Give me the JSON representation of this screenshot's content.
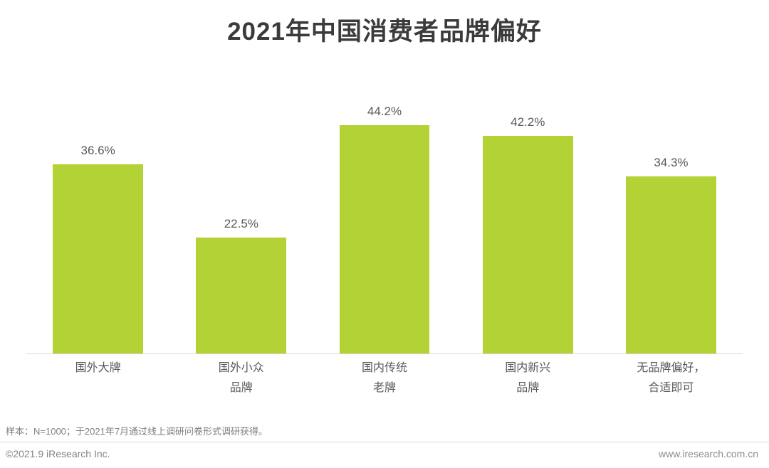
{
  "chart_data": {
    "type": "bar",
    "title": "2021年中国消费者品牌偏好",
    "categories": [
      "国外大牌",
      "国外小众品牌",
      "国内传统老牌",
      "国内新兴品牌",
      "无品牌偏好，合适即可"
    ],
    "category_lines": [
      [
        "国外大牌"
      ],
      [
        "国外小众",
        "品牌"
      ],
      [
        "国内传统",
        "老牌"
      ],
      [
        "国内新兴",
        "品牌"
      ],
      [
        "无品牌偏好，",
        "合适即可"
      ]
    ],
    "values": [
      36.6,
      22.5,
      44.2,
      42.2,
      34.3
    ],
    "value_labels": [
      "36.6%",
      "22.5%",
      "44.2%",
      "42.2%",
      "34.3%"
    ],
    "xlabel": "",
    "ylabel": "",
    "ylim": [
      0,
      50
    ],
    "grid": false,
    "legend": "none",
    "bar_color": "#b2d235",
    "axis_line_color": "#d9d9d9",
    "label_color": "#595959",
    "title_color": "#3b3b3b"
  },
  "footer": {
    "note": "样本：N=1000；于2021年7月通过线上调研问卷形式调研获得。",
    "copyright": "©2021.9 iResearch Inc.",
    "website": "www.iresearch.com.cn"
  }
}
